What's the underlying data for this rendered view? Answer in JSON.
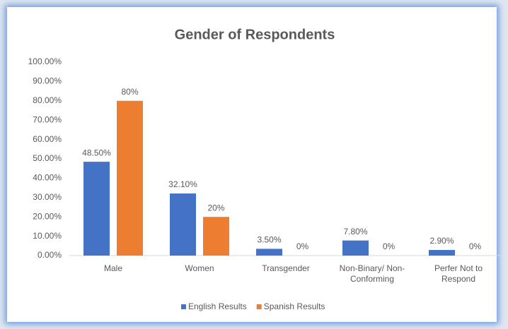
{
  "chart_data": {
    "type": "bar",
    "title": "Gender of Respondents",
    "categories": [
      "Male",
      "Women",
      "Transgender",
      "Non-Binary/ Non-Conforming",
      "Perfer Not to Respond"
    ],
    "series": [
      {
        "name": "English Results",
        "color": "#4472c4",
        "values": [
          48.5,
          32.1,
          3.5,
          7.8,
          2.9
        ],
        "value_labels": [
          "48.50%",
          "32.10%",
          "3.50%",
          "7.80%",
          "2.90%"
        ]
      },
      {
        "name": "Spanish Results",
        "color": "#ed7d31",
        "values": [
          80,
          20,
          0,
          0,
          0
        ],
        "value_labels": [
          "80%",
          "20%",
          "0%",
          "0%",
          "0%"
        ]
      }
    ],
    "ylim": [
      0,
      100
    ],
    "yticks": [
      {
        "value": 0,
        "label": "0.00%"
      },
      {
        "value": 10,
        "label": "10.00%"
      },
      {
        "value": 20,
        "label": "20.00%"
      },
      {
        "value": 30,
        "label": "30.00%"
      },
      {
        "value": 40,
        "label": "40.00%"
      },
      {
        "value": 50,
        "label": "50.00%"
      },
      {
        "value": 60,
        "label": "60.00%"
      },
      {
        "value": 70,
        "label": "70.00%"
      },
      {
        "value": 80,
        "label": "80.00%"
      },
      {
        "value": 90,
        "label": "90.00%"
      },
      {
        "value": 100,
        "label": "100.00%"
      }
    ],
    "grid": false,
    "legend": "bottom"
  }
}
